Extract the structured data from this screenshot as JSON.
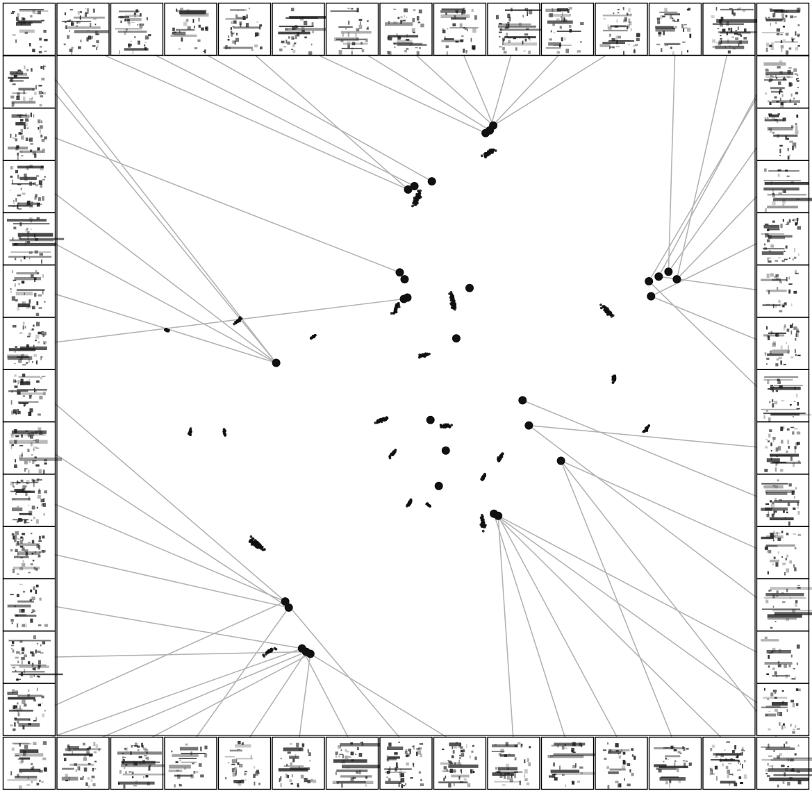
{
  "figure": {
    "type": "embedding-scatter-with-spectrogram-thumbnails",
    "background": "#ffffff",
    "point_color": "#111111",
    "connector_color": "#b4b4b4",
    "thumbnail_border_color": "#000000",
    "thumbnail_ink": "#1a1a1a",
    "thumbnail_content": "spectrogram"
  },
  "chart_data": {
    "type": "scatter",
    "title": "",
    "xlabel": "",
    "ylabel": "",
    "grid": false,
    "axes_visible": false,
    "legend": "none",
    "border_thumbnails": {
      "top_count": 15,
      "bottom_count": 15,
      "left_count": 13,
      "right_count": 13
    },
    "clusters": [
      {
        "x": 51.6,
        "y": 79.0
      },
      {
        "x": 61.9,
        "y": 85.7
      },
      {
        "x": 48.6,
        "y": 62.8
      },
      {
        "x": 78.7,
        "y": 62.5
      },
      {
        "x": 56.7,
        "y": 63.9
      },
      {
        "x": 52.6,
        "y": 55.9
      },
      {
        "x": 26.0,
        "y": 61.0
      },
      {
        "x": 36.8,
        "y": 58.7
      },
      {
        "x": 15.8,
        "y": 59.6
      },
      {
        "x": 46.5,
        "y": 46.4
      },
      {
        "x": 55.7,
        "y": 45.5
      },
      {
        "x": 63.5,
        "y": 40.9
      },
      {
        "x": 79.8,
        "y": 52.4
      },
      {
        "x": 84.4,
        "y": 45.0
      },
      {
        "x": 48.1,
        "y": 41.5
      },
      {
        "x": 61.1,
        "y": 38.0
      },
      {
        "x": 50.5,
        "y": 34.2
      },
      {
        "x": 19.1,
        "y": 44.6
      },
      {
        "x": 24.0,
        "y": 44.6
      },
      {
        "x": 53.2,
        "y": 33.9
      },
      {
        "x": 28.6,
        "y": 28.1
      },
      {
        "x": 61.0,
        "y": 31.3
      },
      {
        "x": 30.4,
        "y": 12.3
      }
    ],
    "highlight_points": [
      {
        "x": 62.5,
        "y": 89.7
      },
      {
        "x": 61.4,
        "y": 88.6
      },
      {
        "x": 62.0,
        "y": 89.0
      },
      {
        "x": 51.2,
        "y": 80.8
      },
      {
        "x": 50.3,
        "y": 80.3
      },
      {
        "x": 53.7,
        "y": 81.5
      },
      {
        "x": 49.1,
        "y": 68.1
      },
      {
        "x": 49.8,
        "y": 67.1
      },
      {
        "x": 50.2,
        "y": 64.4
      },
      {
        "x": 49.7,
        "y": 64.2
      },
      {
        "x": 59.1,
        "y": 65.8
      },
      {
        "x": 84.8,
        "y": 66.8
      },
      {
        "x": 86.2,
        "y": 67.5
      },
      {
        "x": 85.1,
        "y": 64.6
      },
      {
        "x": 88.8,
        "y": 67.1
      },
      {
        "x": 87.6,
        "y": 68.2
      },
      {
        "x": 57.2,
        "y": 58.4
      },
      {
        "x": 31.4,
        "y": 54.8
      },
      {
        "x": 66.7,
        "y": 49.3
      },
      {
        "x": 53.5,
        "y": 46.4
      },
      {
        "x": 67.6,
        "y": 45.6
      },
      {
        "x": 55.7,
        "y": 41.9
      },
      {
        "x": 72.2,
        "y": 40.4
      },
      {
        "x": 54.7,
        "y": 36.7
      },
      {
        "x": 62.6,
        "y": 32.6
      },
      {
        "x": 63.2,
        "y": 32.3
      },
      {
        "x": 32.7,
        "y": 19.7
      },
      {
        "x": 33.2,
        "y": 18.8
      },
      {
        "x": 35.1,
        "y": 12.8
      },
      {
        "x": 36.3,
        "y": 12.0
      },
      {
        "x": 35.7,
        "y": 12.3
      }
    ]
  }
}
